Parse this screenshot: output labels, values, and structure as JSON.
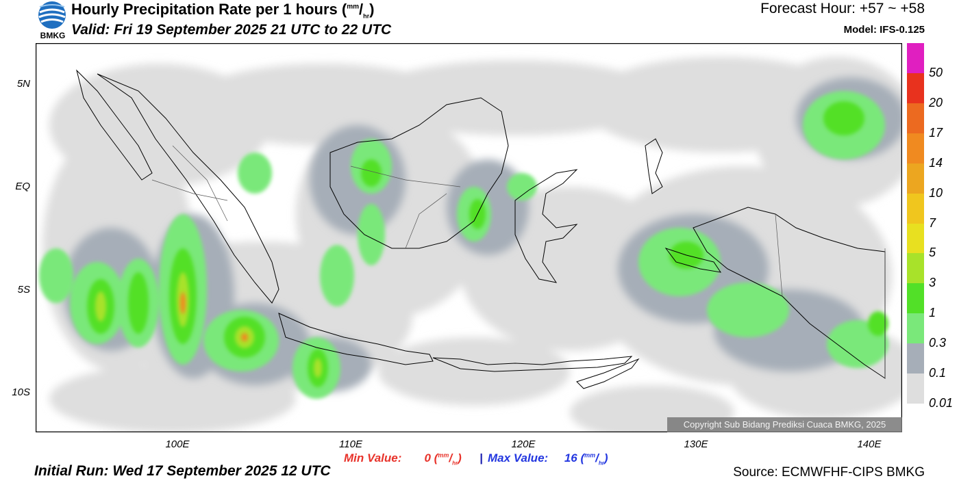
{
  "header": {
    "title_main": "Hourly Precipitation Rate per 1 hours (",
    "title_unit_num": "mm",
    "title_unit_den": "hr",
    "title_close": ")",
    "valid": "Valid: Fri 19 September 2025 21 UTC to 22 UTC",
    "forecast_hour": "Forecast Hour: +57 ~ +58",
    "model": "Model: IFS-0.125",
    "logo_text": "BMKG"
  },
  "axes": {
    "y_labels": [
      "5N",
      "EQ",
      "5S",
      "10S"
    ],
    "x_labels": [
      "100E",
      "110E",
      "120E",
      "130E",
      "140E"
    ]
  },
  "legend": {
    "labels": [
      "50",
      "20",
      "17",
      "14",
      "10",
      "7",
      "5",
      "3",
      "1",
      "0.3",
      "0.1",
      "0.01"
    ],
    "colors": [
      "#e01fc0",
      "#e8321e",
      "#ec6a20",
      "#f08a20",
      "#eca620",
      "#f0c61e",
      "#e8e020",
      "#a8e22a",
      "#52e028",
      "#7ae87a",
      "#a6aeb8",
      "#dedede"
    ]
  },
  "stats": {
    "min_label": "Min Value:",
    "min_value": "0",
    "max_label": "Max Value:",
    "max_value": "16",
    "separator": "|",
    "unit_num": "mm",
    "unit_den": "hr"
  },
  "footer": {
    "initial_run": "Initial Run: Wed 17 September 2025 12 UTC",
    "source": "Source: ECMWFHF-CIPS BMKG",
    "copyright": "Copyright Sub Bidang Prediksi Cuaca BMKG, 2025"
  }
}
